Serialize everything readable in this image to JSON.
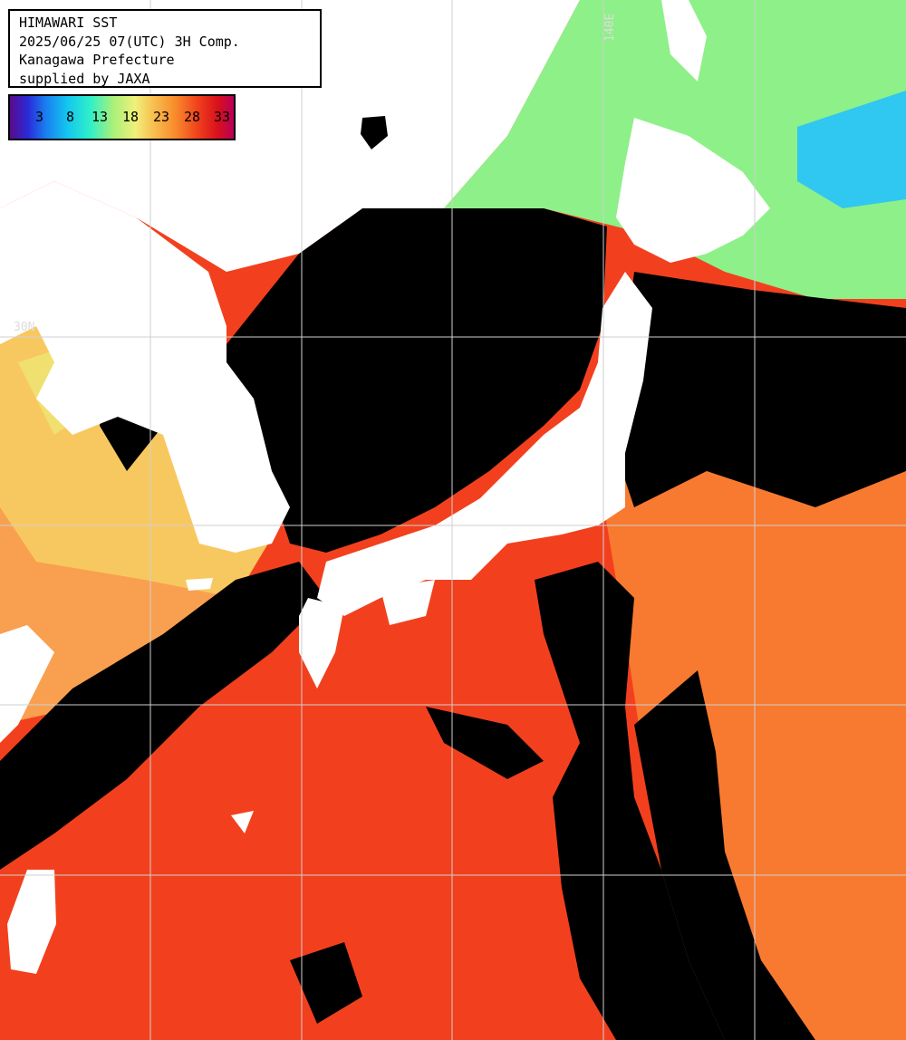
{
  "header": {
    "line1": "HIMAWARI SST",
    "line2": "2025/06/25 07(UTC) 3H Comp.",
    "line3": "Kanagawa Prefecture",
    "line4": "supplied by JAXA"
  },
  "colorbar": {
    "labels": [
      "3",
      "8",
      "13",
      "18",
      "23",
      "28",
      "33"
    ],
    "unit": "",
    "colors": [
      "#5a0a8a",
      "#2a2ad8",
      "#14c8f0",
      "#a8f07a",
      "#f0f07a",
      "#f88a2c",
      "#d8101c",
      "#b8005a"
    ]
  },
  "grid": {
    "lat_label": "30N",
    "lon_label": "140E",
    "line_color": "#cfcfcf"
  },
  "colors": {
    "cloud": "#000000",
    "land": "#ffffff",
    "sst_warm": "#f2401e",
    "sst_orange": "#f87a30",
    "sst_mid": "#f8c860",
    "sst_cool": "#8ef088",
    "sst_cold": "#30c8f0"
  }
}
